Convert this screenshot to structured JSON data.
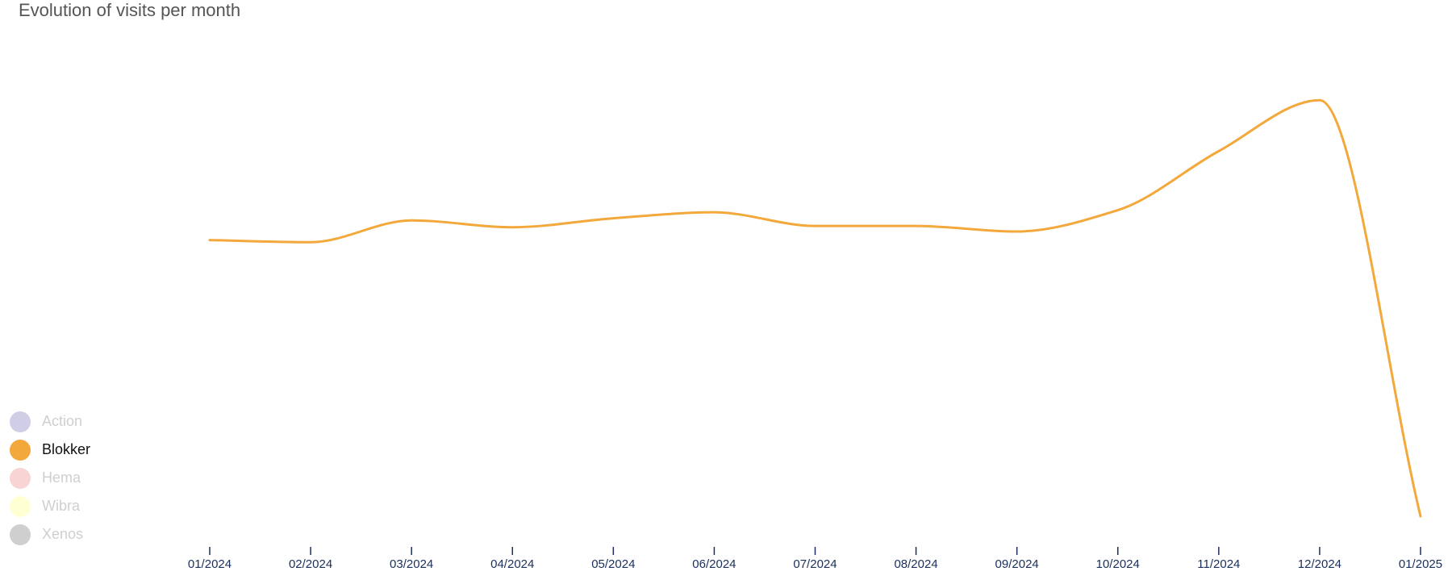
{
  "chart_data": {
    "type": "line",
    "title": "Evolution of visits per month",
    "xlabel": "",
    "ylabel": "",
    "categories": [
      "01/2024",
      "02/2024",
      "03/2024",
      "04/2024",
      "05/2024",
      "06/2024",
      "07/2024",
      "08/2024",
      "09/2024",
      "10/2024",
      "11/2024",
      "12/2024",
      "01/2025"
    ],
    "ylim": [
      0,
      100
    ],
    "grid": false,
    "legend_position": "bottom-left",
    "series": [
      {
        "name": "Blokker",
        "color": "#f3a83b",
        "active": true,
        "values": [
          64.6,
          64.1,
          69.2,
          67.6,
          69.7,
          71.1,
          67.9,
          67.9,
          66.6,
          71.6,
          85.4,
          97.3,
          0
        ]
      }
    ],
    "legend": [
      {
        "name": "Action",
        "color": "#d0cee6",
        "active": false
      },
      {
        "name": "Blokker",
        "color": "#f3a83b",
        "active": true
      },
      {
        "name": "Hema",
        "color": "#f9d4d4",
        "active": false
      },
      {
        "name": "Wibra",
        "color": "#feffd2",
        "active": false
      },
      {
        "name": "Xenos",
        "color": "#cfcfcf",
        "active": false
      }
    ],
    "colors": {
      "axis": "#1a2f5a",
      "inactive_text": "#cfcfcf",
      "active_text": "#111111"
    }
  }
}
